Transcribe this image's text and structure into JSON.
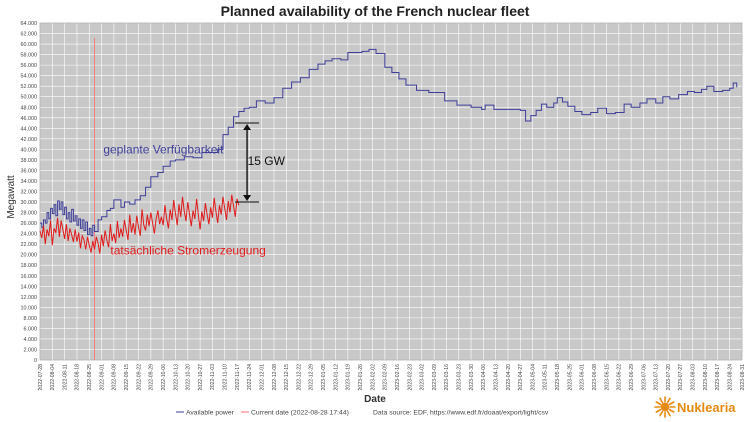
{
  "chart_data": {
    "type": "line",
    "title": "Planned availability of the French nuclear fleet",
    "xlabel": "Date",
    "ylabel": "Megawatt",
    "ylim": [
      0,
      64000
    ],
    "yticks": [
      0,
      2000,
      4000,
      6000,
      8000,
      10000,
      12000,
      14000,
      16000,
      18000,
      20000,
      22000,
      24000,
      26000,
      28000,
      30000,
      32000,
      34000,
      36000,
      38000,
      40000,
      42000,
      44000,
      46000,
      48000,
      50000,
      52000,
      54000,
      56000,
      58000,
      60000,
      62000,
      64000
    ],
    "ytick_labels": [
      "0",
      "2.000",
      "4.000",
      "6.000",
      "8.000",
      "10.000",
      "12.000",
      "14.000",
      "16.000",
      "18.000",
      "20.000",
      "22.000",
      "24.000",
      "26.000",
      "28.000",
      "30.000",
      "32.000",
      "34.000",
      "36.000",
      "38.000",
      "40.000",
      "42.000",
      "44.000",
      "46.000",
      "48.000",
      "50.000",
      "52.000",
      "54.000",
      "56.000",
      "58.000",
      "60.000",
      "62.000",
      "64.000"
    ],
    "xlim": [
      "2022-07-28",
      "2023-08-31"
    ],
    "xticks": [
      "2022-07-28",
      "2022-08-04",
      "2022-08-11",
      "2022-08-18",
      "2022-08-25",
      "2022-09-01",
      "2022-09-08",
      "2022-09-15",
      "2022-09-22",
      "2022-09-29",
      "2022-10-06",
      "2022-10-13",
      "2022-10-20",
      "2022-10-27",
      "2022-11-03",
      "2022-11-10",
      "2022-11-17",
      "2022-11-24",
      "2022-12-01",
      "2022-12-08",
      "2022-12-15",
      "2022-12-22",
      "2022-12-29",
      "2023-01-05",
      "2023-01-12",
      "2023-01-19",
      "2023-01-26",
      "2023-02-02",
      "2023-02-09",
      "2023-02-16",
      "2023-02-23",
      "2023-03-02",
      "2023-03-09",
      "2023-03-16",
      "2023-03-23",
      "2023-03-30",
      "2023-04-06",
      "2023-04-13",
      "2023-04-20",
      "2023-04-27",
      "2023-05-04",
      "2023-05-11",
      "2023-05-18",
      "2023-05-25",
      "2023-06-01",
      "2023-06-08",
      "2023-06-15",
      "2023-06-22",
      "2023-06-29",
      "2023-07-06",
      "2023-07-13",
      "2023-07-20",
      "2023-07-27",
      "2023-08-03",
      "2023-08-10",
      "2023-08-17",
      "2023-08-24",
      "2023-08-31"
    ],
    "grid": true,
    "series": [
      {
        "name": "Available power",
        "color": "#3f3f9a",
        "x": [
          "2022-07-28",
          "2022-07-29",
          "2022-07-30",
          "2022-07-31",
          "2022-08-01",
          "2022-08-02",
          "2022-08-03",
          "2022-08-04",
          "2022-08-05",
          "2022-08-06",
          "2022-08-07",
          "2022-08-08",
          "2022-08-09",
          "2022-08-10",
          "2022-08-11",
          "2022-08-12",
          "2022-08-13",
          "2022-08-14",
          "2022-08-15",
          "2022-08-16",
          "2022-08-17",
          "2022-08-18",
          "2022-08-19",
          "2022-08-20",
          "2022-08-21",
          "2022-08-22",
          "2022-08-23",
          "2022-08-24",
          "2022-08-25",
          "2022-08-26",
          "2022-08-27",
          "2022-08-28",
          "2022-08-30",
          "2022-09-01",
          "2022-09-04",
          "2022-09-06",
          "2022-09-08",
          "2022-09-12",
          "2022-09-14",
          "2022-09-17",
          "2022-09-20",
          "2022-09-23",
          "2022-09-26",
          "2022-09-29",
          "2022-10-03",
          "2022-10-06",
          "2022-10-10",
          "2022-10-13",
          "2022-10-18",
          "2022-10-23",
          "2022-10-28",
          "2022-11-02",
          "2022-11-06",
          "2022-11-09",
          "2022-11-12",
          "2022-11-15",
          "2022-11-18",
          "2022-11-21",
          "2022-11-24",
          "2022-11-28",
          "2022-12-03",
          "2022-12-08",
          "2022-12-13",
          "2022-12-18",
          "2022-12-23",
          "2022-12-28",
          "2023-01-02",
          "2023-01-06",
          "2023-01-10",
          "2023-01-15",
          "2023-01-19",
          "2023-01-23",
          "2023-01-27",
          "2023-01-31",
          "2023-02-04",
          "2023-02-09",
          "2023-02-13",
          "2023-02-17",
          "2023-02-21",
          "2023-02-27",
          "2023-03-06",
          "2023-03-15",
          "2023-03-22",
          "2023-03-30",
          "2023-04-05",
          "2023-04-07",
          "2023-04-12",
          "2023-04-20",
          "2023-04-27",
          "2023-04-30",
          "2023-05-03",
          "2023-05-06",
          "2023-05-09",
          "2023-05-12",
          "2023-05-16",
          "2023-05-18",
          "2023-05-21",
          "2023-05-24",
          "2023-05-28",
          "2023-06-01",
          "2023-06-06",
          "2023-06-10",
          "2023-06-15",
          "2023-06-20",
          "2023-06-25",
          "2023-06-29",
          "2023-07-04",
          "2023-07-08",
          "2023-07-13",
          "2023-07-17",
          "2023-07-21",
          "2023-07-26",
          "2023-07-31",
          "2023-08-04",
          "2023-08-08",
          "2023-08-11",
          "2023-08-15",
          "2023-08-20",
          "2023-08-24",
          "2023-08-26",
          "2023-08-28"
        ],
        "y": [
          26000,
          25200,
          26600,
          26000,
          28000,
          26800,
          28800,
          27800,
          29500,
          27400,
          30200,
          28600,
          30000,
          27600,
          29000,
          26800,
          28000,
          26200,
          28600,
          26400,
          27400,
          25600,
          26800,
          25000,
          26600,
          24600,
          26200,
          23800,
          25000,
          23600,
          25600,
          24400,
          26600,
          27200,
          28400,
          28800,
          30400,
          29000,
          30000,
          29600,
          30400,
          31200,
          32800,
          34800,
          35600,
          36800,
          37800,
          38000,
          38600,
          38400,
          39400,
          39400,
          40000,
          42800,
          44200,
          46200,
          47200,
          47800,
          48000,
          49200,
          48800,
          49800,
          51600,
          52800,
          53600,
          55200,
          56200,
          56800,
          57200,
          57000,
          58400,
          58400,
          58600,
          59000,
          58200,
          55600,
          54600,
          53400,
          52200,
          51200,
          50800,
          49200,
          48400,
          48000,
          47600,
          48400,
          47600,
          47600,
          47400,
          45400,
          46400,
          47400,
          48600,
          48000,
          48800,
          49800,
          49000,
          48200,
          47200,
          46600,
          47000,
          47800,
          46800,
          47000,
          48600,
          48000,
          48800,
          49600,
          48800,
          50000,
          49600,
          50400,
          51000,
          50800,
          51400,
          52000,
          51000,
          51200,
          51600,
          52600,
          51800
        ]
      },
      {
        "name": "tatsächliche Stromerzeugung",
        "color": "#e01b1b",
        "x": [
          "2022-07-28",
          "2022-07-29",
          "2022-07-30",
          "2022-07-31",
          "2022-08-01",
          "2022-08-02",
          "2022-08-03",
          "2022-08-04",
          "2022-08-05",
          "2022-08-06",
          "2022-08-07",
          "2022-08-08",
          "2022-08-09",
          "2022-08-10",
          "2022-08-11",
          "2022-08-12",
          "2022-08-13",
          "2022-08-14",
          "2022-08-15",
          "2022-08-16",
          "2022-08-17",
          "2022-08-18",
          "2022-08-19",
          "2022-08-20",
          "2022-08-21",
          "2022-08-22",
          "2022-08-23",
          "2022-08-24",
          "2022-08-25",
          "2022-08-26",
          "2022-08-27",
          "2022-08-28",
          "2022-08-29",
          "2022-08-30",
          "2022-08-31",
          "2022-09-01",
          "2022-09-02",
          "2022-09-03",
          "2022-09-04",
          "2022-09-05",
          "2022-09-06",
          "2022-09-07",
          "2022-09-08",
          "2022-09-09",
          "2022-09-10",
          "2022-09-11",
          "2022-09-12",
          "2022-09-13",
          "2022-09-14",
          "2022-09-15",
          "2022-09-16",
          "2022-09-17",
          "2022-09-18",
          "2022-09-19",
          "2022-09-20",
          "2022-09-21",
          "2022-09-22",
          "2022-09-23",
          "2022-09-24",
          "2022-09-25",
          "2022-09-26",
          "2022-09-27",
          "2022-09-28",
          "2022-09-29",
          "2022-09-30",
          "2022-10-01",
          "2022-10-02",
          "2022-10-03",
          "2022-10-04",
          "2022-10-05",
          "2022-10-06",
          "2022-10-07",
          "2022-10-08",
          "2022-10-09",
          "2022-10-10",
          "2022-10-11",
          "2022-10-12",
          "2022-10-13",
          "2022-10-14",
          "2022-10-15",
          "2022-10-16",
          "2022-10-17",
          "2022-10-18",
          "2022-10-19",
          "2022-10-20",
          "2022-10-21",
          "2022-10-22",
          "2022-10-23",
          "2022-10-24",
          "2022-10-25",
          "2022-10-26",
          "2022-10-27",
          "2022-10-28",
          "2022-10-29",
          "2022-10-30",
          "2022-10-31",
          "2022-11-01",
          "2022-11-02",
          "2022-11-03",
          "2022-11-04",
          "2022-11-05",
          "2022-11-06",
          "2022-11-07",
          "2022-11-08",
          "2022-11-09",
          "2022-11-10",
          "2022-11-11",
          "2022-11-12",
          "2022-11-13",
          "2022-11-14",
          "2022-11-15",
          "2022-11-16",
          "2022-11-17",
          "2022-11-18"
        ],
        "y": [
          24500,
          23200,
          25500,
          22000,
          24800,
          23500,
          26500,
          21800,
          25000,
          24200,
          27000,
          23400,
          26500,
          24800,
          23000,
          25800,
          22600,
          25000,
          23800,
          22400,
          24800,
          22500,
          24200,
          21200,
          23600,
          22800,
          21000,
          23400,
          21800,
          20400,
          22600,
          21000,
          23400,
          22200,
          20200,
          23800,
          21600,
          24600,
          22800,
          21400,
          25800,
          22600,
          24000,
          22200,
          26400,
          23200,
          25000,
          23400,
          26600,
          24600,
          22800,
          27600,
          24200,
          26000,
          23800,
          27400,
          25200,
          23600,
          28600,
          25600,
          24600,
          27600,
          25400,
          28000,
          26000,
          24000,
          26800,
          28400,
          25800,
          27200,
          25600,
          29400,
          26800,
          25000,
          28600,
          26600,
          30400,
          27800,
          25600,
          29600,
          27200,
          31000,
          28200,
          26400,
          30000,
          27600,
          25400,
          28400,
          26800,
          30600,
          27600,
          24800,
          28200,
          26400,
          29800,
          27600,
          25800,
          29000,
          27000,
          30800,
          28200,
          26000,
          29400,
          27600,
          31000,
          28800,
          26600,
          30200,
          28000,
          31400,
          29200,
          27200,
          30600,
          29400
        ]
      }
    ],
    "vline": {
      "x": "2022-08-28",
      "color": "#ff6b6b"
    },
    "annotations": [
      {
        "text": "geplante Verfügbarkeit",
        "x": "2022-09-02",
        "y": 39200
      },
      {
        "text": "tatsächliche Stromerzeugung",
        "x": "2022-09-06",
        "y": 20000
      },
      {
        "text": "15 GW",
        "x_from": "2022-11-17",
        "x_text": "2022-11-23",
        "y_from": 30000,
        "y_to": 45000,
        "y_text": 37000
      }
    ],
    "legend_placement": "bottom",
    "legend": {
      "available": "Available power",
      "current": "Current date (2022-08-28 17:44)",
      "source": "Data source: EDF, https://www.edf.fr/doaat/export/light/csv"
    }
  },
  "logo": {
    "text": "Nuklearia",
    "color": "#e78a13"
  }
}
